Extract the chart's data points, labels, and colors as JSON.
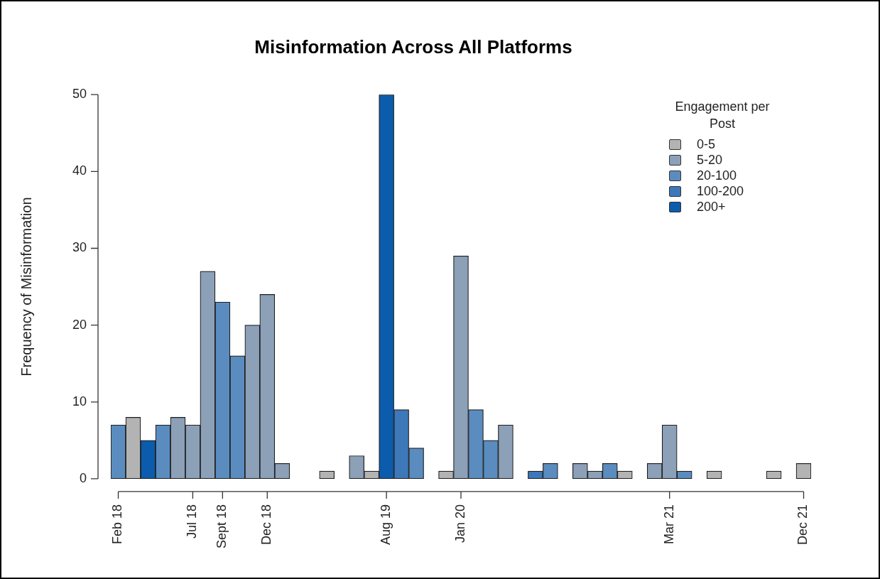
{
  "chart_data": {
    "type": "bar",
    "title": "Misinformation Across All Platforms",
    "ylabel": "Frequency of Misinformation",
    "legend_title": "Engagement per Post",
    "legend": "top right",
    "stacked": true,
    "grid": false,
    "categories": [
      "Feb 18",
      null,
      null,
      null,
      null,
      "Jul 18",
      null,
      "Sept 18",
      null,
      null,
      "Dec 18",
      null,
      null,
      null,
      null,
      null,
      null,
      null,
      "Aug 19",
      null,
      null,
      null,
      null,
      "Jan 20",
      null,
      null,
      null,
      null,
      null,
      null,
      null,
      null,
      null,
      null,
      null,
      null,
      null,
      "Mar 21",
      null,
      null,
      null,
      null,
      null,
      null,
      null,
      null,
      "Dec 21"
    ],
    "ylim": [
      0,
      50
    ],
    "yticks": [
      0,
      10,
      20,
      30,
      40,
      50
    ],
    "series": [
      {
        "name": "0-5",
        "color": "#b3b3b3",
        "values": [
          null,
          8,
          null,
          null,
          null,
          null,
          null,
          null,
          null,
          null,
          null,
          null,
          null,
          null,
          1,
          null,
          null,
          1,
          null,
          null,
          null,
          null,
          1,
          null,
          null,
          null,
          null,
          null,
          null,
          null,
          null,
          null,
          null,
          null,
          1,
          null,
          null,
          null,
          null,
          null,
          1,
          null,
          null,
          null,
          1,
          null,
          2
        ]
      },
      {
        "name": "5-20",
        "color": "#8ca0b8",
        "values": [
          null,
          null,
          null,
          null,
          8,
          7,
          27,
          null,
          null,
          20,
          24,
          2,
          null,
          null,
          null,
          null,
          3,
          null,
          null,
          null,
          null,
          null,
          null,
          29,
          null,
          null,
          7,
          null,
          null,
          null,
          null,
          2,
          1,
          null,
          null,
          null,
          2,
          7,
          null,
          null,
          null,
          null,
          null,
          null,
          null,
          null,
          null
        ]
      },
      {
        "name": "20-100",
        "color": "#5b8cbf",
        "values": [
          7,
          null,
          null,
          7,
          null,
          null,
          null,
          23,
          16,
          null,
          null,
          null,
          null,
          null,
          null,
          null,
          null,
          null,
          null,
          null,
          4,
          null,
          null,
          null,
          9,
          5,
          null,
          null,
          null,
          2,
          null,
          null,
          null,
          2,
          null,
          null,
          null,
          null,
          1,
          null,
          null,
          null,
          null,
          null,
          null,
          null,
          null
        ]
      },
      {
        "name": "100-200",
        "color": "#3d78b9",
        "values": [
          null,
          null,
          null,
          null,
          null,
          null,
          null,
          null,
          null,
          null,
          null,
          null,
          null,
          null,
          null,
          null,
          null,
          null,
          null,
          9,
          null,
          null,
          null,
          null,
          null,
          null,
          null,
          null,
          1,
          null,
          null,
          null,
          null,
          null,
          null,
          null,
          null,
          null,
          null,
          null,
          null,
          null,
          null,
          null,
          null,
          null,
          null
        ]
      },
      {
        "name": "200+",
        "color": "#0b5cad",
        "values": [
          null,
          null,
          5,
          null,
          null,
          null,
          null,
          null,
          null,
          null,
          null,
          null,
          null,
          null,
          null,
          null,
          null,
          null,
          50,
          null,
          null,
          null,
          null,
          null,
          null,
          null,
          null,
          null,
          null,
          null,
          null,
          null,
          null,
          null,
          null,
          null,
          null,
          null,
          null,
          null,
          null,
          null,
          null,
          null,
          null,
          null,
          null
        ]
      }
    ]
  }
}
